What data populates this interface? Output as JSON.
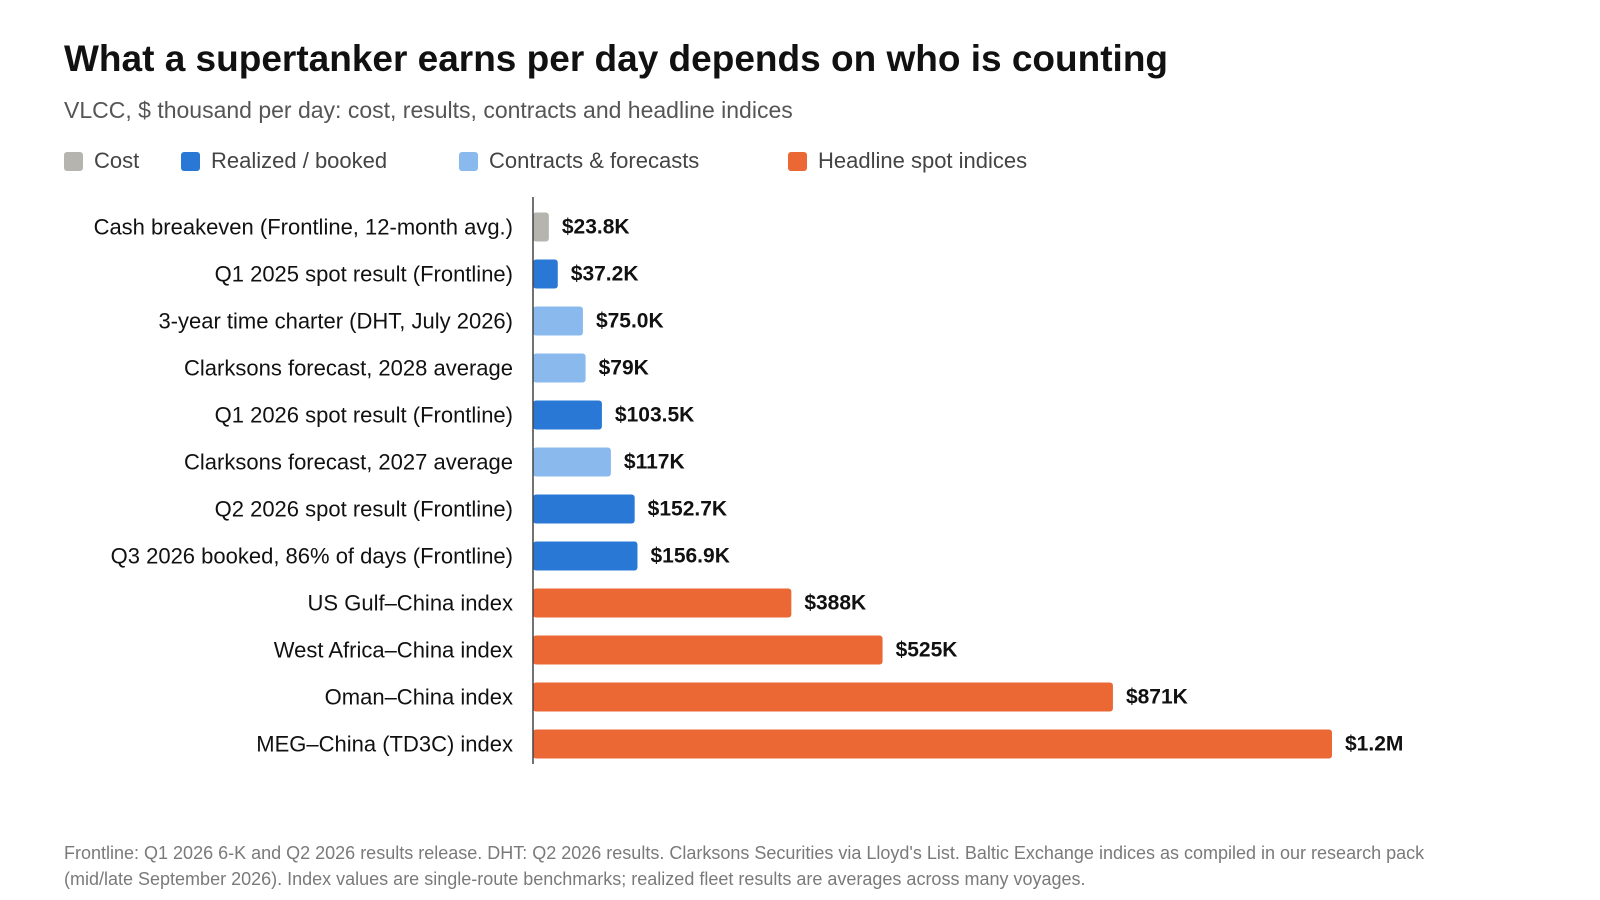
{
  "header": {
    "title": "What a supertanker earns per day depends on who is counting",
    "subtitle": "VLCC, $ thousand per day: cost, results, contracts and headline indices"
  },
  "legend": [
    {
      "label": "Cost",
      "color": "#b5b4ae"
    },
    {
      "label": "Realized / booked",
      "color": "#2a78d6"
    },
    {
      "label": "Contracts & forecasts",
      "color": "#8ab9ee"
    },
    {
      "label": "Headline spot indices",
      "color": "#eb6834"
    }
  ],
  "chart_data": {
    "type": "bar",
    "orientation": "horizontal",
    "title": "What a supertanker earns per day depends on who is counting",
    "subtitle": "VLCC, $ thousand per day: cost, results, contracts and headline indices",
    "xlabel": "",
    "ylabel": "",
    "grid": false,
    "legend_position": "top-left",
    "xlim": [
      0,
      1200
    ],
    "categories": [
      "Cash breakeven (Frontline, 12-month avg.)",
      "Q1 2025 spot result (Frontline)",
      "3-year time charter (DHT, July 2026)",
      "Clarksons forecast, 2028 average",
      "Q1 2026 spot result (Frontline)",
      "Clarksons forecast, 2027 average",
      "Q2 2026 spot result (Frontline)",
      "Q3 2026 booked, 86% of days (Frontline)",
      "US Gulf–China index",
      "West Africa–China index",
      "Oman–China index",
      "MEG–China (TD3C) index"
    ],
    "values": [
      23.8,
      37.2,
      75.0,
      79,
      103.5,
      117,
      152.7,
      156.9,
      388,
      525,
      871,
      1200
    ],
    "data_labels": [
      "$23.8K",
      "$37.2K",
      "$75.0K",
      "$79K",
      "$103.5K",
      "$117K",
      "$152.7K",
      "$156.9K",
      "$388K",
      "$525K",
      "$871K",
      "$1.2M"
    ],
    "groups": [
      "Cost",
      "Realized / booked",
      "Contracts & forecasts",
      "Contracts & forecasts",
      "Realized / booked",
      "Contracts & forecasts",
      "Realized / booked",
      "Realized / booked",
      "Headline spot indices",
      "Headline spot indices",
      "Headline spot indices",
      "Headline spot indices"
    ],
    "group_colors": {
      "Cost": "#b5b4ae",
      "Realized / booked": "#2a78d6",
      "Contracts & forecasts": "#8ab9ee",
      "Headline spot indices": "#eb6834"
    }
  },
  "footer": {
    "source": "Frontline: Q1 2026 6-K and Q2 2026 results release. DHT: Q2 2026 results. Clarksons Securities via Lloyd's List. Baltic Exchange indices as compiled in our research pack (mid/late September 2026). Index values are single-route benchmarks; realized fleet results are averages across many voyages."
  }
}
